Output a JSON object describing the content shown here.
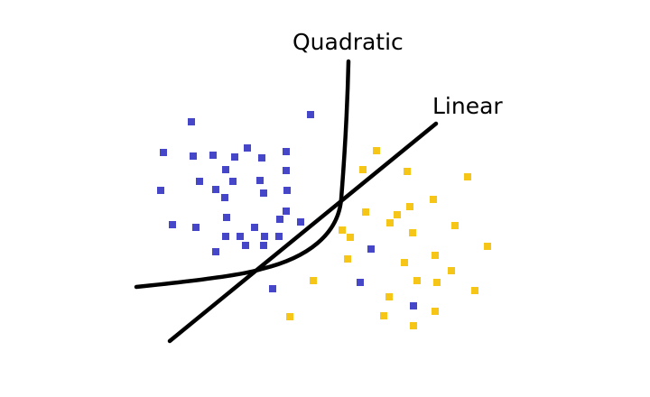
{
  "labels": {
    "quadratic": "Quadratic",
    "linear": "Linear"
  },
  "colors": {
    "class_a": "#4646c8",
    "class_b": "#f5c518",
    "boundary": "#000000",
    "background": "#ffffff"
  }
}
